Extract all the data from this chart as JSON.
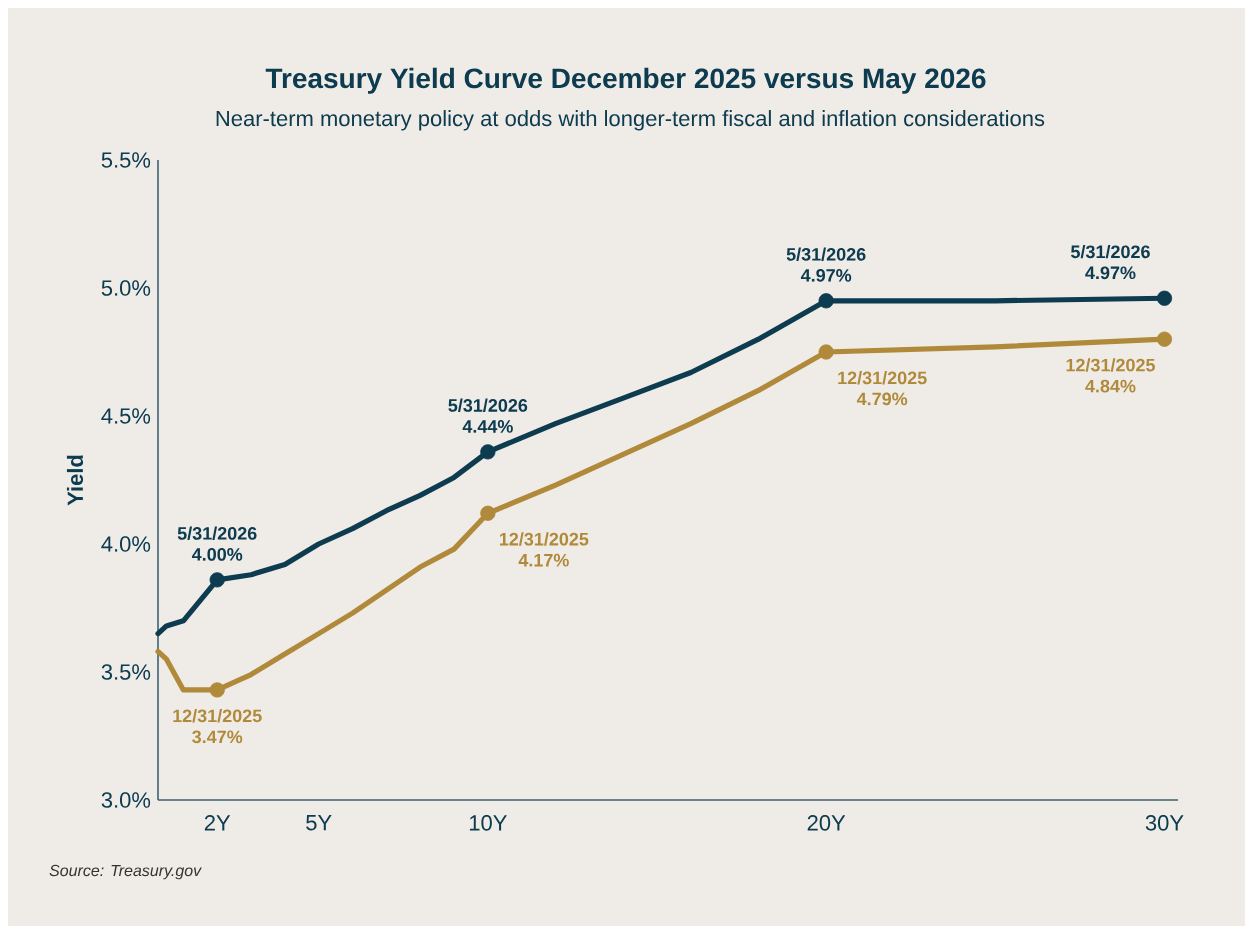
{
  "chart_data": {
    "type": "line",
    "title": "Treasury Yield Curve December 2025 versus May 2026",
    "subtitle": "Near-term monetary policy at odds with longer-term fiscal and inflation considerations",
    "ylabel": "Yield",
    "xlim": [
      0.25,
      30.4
    ],
    "ylim": [
      3.0,
      5.5
    ],
    "xticks": [
      {
        "value": 2,
        "label": "2Y"
      },
      {
        "value": 5,
        "label": "5Y"
      },
      {
        "value": 10,
        "label": "10Y"
      },
      {
        "value": 20,
        "label": "20Y"
      },
      {
        "value": 30,
        "label": "30Y"
      }
    ],
    "yticks": [
      {
        "value": 3.0,
        "label": "3.0%"
      },
      {
        "value": 3.5,
        "label": "3.5%"
      },
      {
        "value": 4.0,
        "label": "4.0%"
      },
      {
        "value": 4.5,
        "label": "4.5%"
      },
      {
        "value": 5.0,
        "label": "5.0%"
      },
      {
        "value": 5.5,
        "label": "5.5%"
      }
    ],
    "series": [
      {
        "type": "line",
        "color": "#0d3b4f",
        "x": [
          0.25,
          0.5,
          1,
          2,
          3,
          4,
          5,
          6,
          7,
          8,
          9,
          10,
          12,
          14,
          16,
          18,
          20,
          25,
          30
        ],
        "values": [
          3.65,
          3.68,
          3.7,
          3.86,
          3.88,
          3.92,
          4.0,
          4.06,
          4.13,
          4.19,
          4.26,
          4.36,
          4.47,
          4.57,
          4.67,
          4.8,
          4.95,
          4.95,
          4.96
        ]
      },
      {
        "type": "line",
        "color": "#b08a3a",
        "x": [
          0.25,
          0.5,
          1,
          2,
          3,
          4,
          5,
          6,
          7,
          8,
          9,
          10,
          12,
          14,
          16,
          18,
          20,
          25,
          30
        ],
        "values": [
          3.58,
          3.55,
          3.43,
          3.43,
          3.49,
          3.57,
          3.65,
          3.73,
          3.82,
          3.91,
          3.98,
          4.12,
          4.23,
          4.35,
          4.47,
          4.6,
          4.75,
          4.77,
          4.8
        ]
      },
      {
        "type": "scatter",
        "marker": "circle",
        "color": "#0d3b4f",
        "x": [
          2,
          10,
          20,
          30
        ],
        "values": [
          3.86,
          4.36,
          4.95,
          4.96
        ]
      },
      {
        "type": "scatter",
        "marker": "circle",
        "color": "#b08a3a",
        "x": [
          2,
          10,
          20,
          30
        ],
        "values": [
          3.43,
          4.12,
          4.75,
          4.8
        ]
      }
    ],
    "annotations": [
      {
        "text": "5/31/2026 4.00%",
        "x": 2,
        "y": 3.86
      },
      {
        "text": "5/31/2026 4.44%",
        "x": 10,
        "y": 4.36
      },
      {
        "text": "5/31/2026 4.97%",
        "x": 20,
        "y": 4.95
      },
      {
        "text": "5/31/2026 4.97%",
        "x": 30,
        "y": 4.96
      },
      {
        "text": "12/31/2025 3.47%",
        "x": 2,
        "y": 3.43
      },
      {
        "text": "12/31/2025 4.17%",
        "x": 10,
        "y": 4.12
      },
      {
        "text": "12/31/2025 4.79%",
        "x": 20,
        "y": 4.75
      },
      {
        "text": "12/31/2025 4.84%",
        "x": 30,
        "y": 4.8
      },
      "Source: Treasury.gov"
    ]
  }
}
